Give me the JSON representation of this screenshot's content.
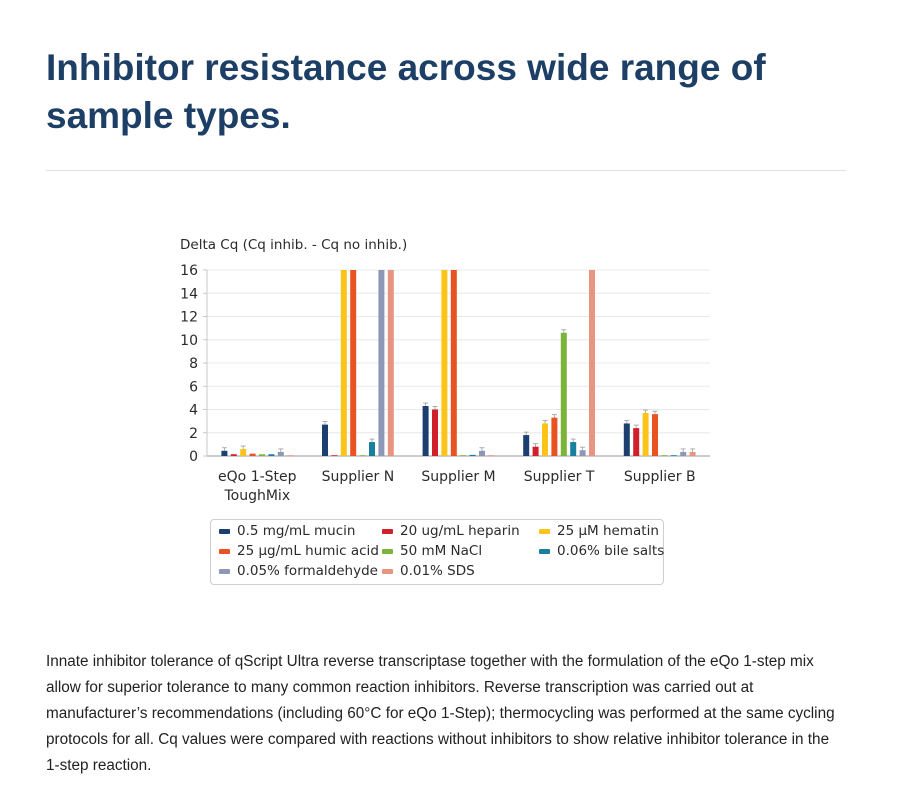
{
  "heading": "Inhibitor resistance across wide range of sample types.",
  "caption": "Innate inhibitor tolerance of qScript Ultra reverse transcriptase together with the formulation of the eQo 1-step mix allow for superior tolerance to many common reaction inhibitors. Reverse transcription was carried out at manufacturer’s recommendations (including 60°C for eQo 1-Step); thermocycling was performed at the same cycling protocols for all. Cq values were compared with reactions without inhibitors to show relative inhibitor tolerance in the 1-step reaction.",
  "chart_data": {
    "type": "bar",
    "ylabel": "Delta Cq (Cq inhib. - Cq no inhib.)",
    "ylim": [
      0,
      16
    ],
    "yticks": [
      "0",
      "2",
      "4",
      "6",
      "8",
      "10",
      "12",
      "14",
      "16"
    ],
    "grid": true,
    "legend_position": "bottom",
    "categories": [
      [
        "eQo 1-Step",
        "ToughMix"
      ],
      [
        "Supplier N"
      ],
      [
        "Supplier M"
      ],
      [
        "Supplier T"
      ],
      [
        "Supplier B"
      ]
    ],
    "series": [
      {
        "name": "0.5 mg/mL mucin",
        "color": "#1b3f6e",
        "values": [
          0.45,
          2.7,
          4.3,
          1.8,
          2.8
        ]
      },
      {
        "name": "20 ug/mL heparin",
        "color": "#d1202b",
        "values": [
          0.15,
          0.05,
          4.0,
          0.8,
          2.4
        ]
      },
      {
        "name": "25 µM hematin",
        "color": "#fcc418",
        "values": [
          0.6,
          16,
          16,
          2.8,
          3.7
        ]
      },
      {
        "name": "25 µg/mL humic acid",
        "color": "#e95221",
        "values": [
          0.2,
          16,
          16,
          3.3,
          3.6
        ]
      },
      {
        "name": "50 mM NaCl",
        "color": "#7ab539",
        "values": [
          0.15,
          0.0,
          0.05,
          10.6,
          0.0
        ]
      },
      {
        "name": "0.06% bile salts",
        "color": "#1a7e9e",
        "values": [
          0.15,
          1.2,
          0.1,
          1.2,
          0.05
        ]
      },
      {
        "name": "0.05% formaldehyde",
        "color": "#8f97b6",
        "values": [
          0.35,
          16,
          0.45,
          0.5,
          0.35
        ]
      },
      {
        "name": "0.01% SDS",
        "color": "#e89480",
        "values": [
          0.05,
          16,
          0.05,
          16,
          0.35
        ]
      }
    ]
  }
}
